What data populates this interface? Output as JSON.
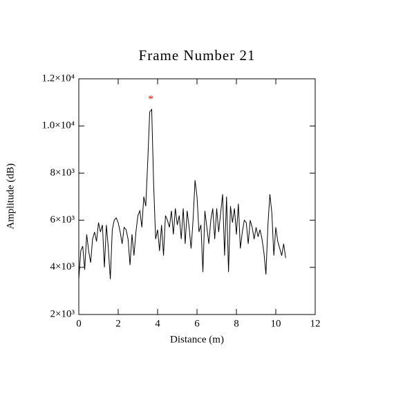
{
  "chart_data": {
    "type": "line",
    "title": "Frame Number 21",
    "x_label": "Distance (m)",
    "y_label": "Amplitude (dB)",
    "x": [
      0.0,
      0.1,
      0.2,
      0.3,
      0.4,
      0.5,
      0.6,
      0.7,
      0.8,
      0.9,
      1.0,
      1.1,
      1.2,
      1.3,
      1.4,
      1.5,
      1.6,
      1.7,
      1.8,
      1.9,
      2.0,
      2.1,
      2.2,
      2.3,
      2.4,
      2.5,
      2.6,
      2.7,
      2.8,
      2.9,
      3.0,
      3.1,
      3.2,
      3.3,
      3.4,
      3.5,
      3.6,
      3.7,
      3.8,
      3.9,
      4.0,
      4.1,
      4.2,
      4.3,
      4.4,
      4.5,
      4.6,
      4.7,
      4.8,
      4.9,
      5.0,
      5.1,
      5.2,
      5.3,
      5.4,
      5.5,
      5.6,
      5.7,
      5.8,
      5.9,
      6.0,
      6.1,
      6.2,
      6.3,
      6.4,
      6.5,
      6.6,
      6.7,
      6.8,
      6.9,
      7.0,
      7.1,
      7.2,
      7.3,
      7.4,
      7.5,
      7.6,
      7.7,
      7.8,
      7.9,
      8.0,
      8.1,
      8.2,
      8.3,
      8.4,
      8.5,
      8.6,
      8.7,
      8.8,
      8.9,
      9.0,
      9.1,
      9.2,
      9.3,
      9.4,
      9.5,
      9.6,
      9.7,
      9.8,
      9.9,
      10.0,
      10.1,
      10.2,
      10.3,
      10.4,
      10.5
    ],
    "series": [
      {
        "color": "#000000",
        "values": [
          3500,
          4700,
          4900,
          3900,
          5400,
          4700,
          4200,
          5200,
          5500,
          5100,
          5900,
          5500,
          5800,
          4000,
          5800,
          4800,
          3500,
          5600,
          6000,
          6100,
          5900,
          5500,
          5000,
          5700,
          5600,
          5200,
          4100,
          5400,
          4500,
          5500,
          6200,
          6400,
          5700,
          7000,
          6600,
          8500,
          10600,
          10700,
          7500,
          5200,
          5600,
          4700,
          5800,
          4500,
          6200,
          6000,
          5700,
          6400,
          5400,
          6500,
          5800,
          6200,
          5200,
          6500,
          5000,
          6400,
          5700,
          4800,
          6000,
          7700,
          7000,
          5500,
          5800,
          3800,
          6400,
          5700,
          5000,
          6000,
          6500,
          5200,
          6500,
          5500,
          6300,
          7100,
          4500,
          7000,
          3800,
          6600,
          5900,
          6500,
          5400,
          6700,
          4800,
          5500,
          6000,
          5900,
          5000,
          6000,
          5700,
          5200,
          5700,
          5300,
          5600,
          5200,
          4600,
          3700,
          5800,
          7100,
          6300,
          4500,
          5700,
          5100,
          4800,
          4500,
          5000,
          4400
        ]
      }
    ],
    "peak_marker": {
      "x": 3.65,
      "y": 11200,
      "symbol": "*",
      "color": "#ff0000"
    },
    "xlim": [
      0,
      12
    ],
    "xticks": [
      0,
      2,
      4,
      6,
      8,
      10,
      12
    ],
    "ylim": [
      2000,
      12000
    ],
    "yticks": [
      {
        "value": 2000,
        "label": "2×10³"
      },
      {
        "value": 4000,
        "label": "4×10³"
      },
      {
        "value": 6000,
        "label": "6×10³"
      },
      {
        "value": 8000,
        "label": "8×10³"
      },
      {
        "value": 10000,
        "label": "1.0×10⁴"
      },
      {
        "value": 12000,
        "label": "1.2×10⁴"
      }
    ]
  }
}
